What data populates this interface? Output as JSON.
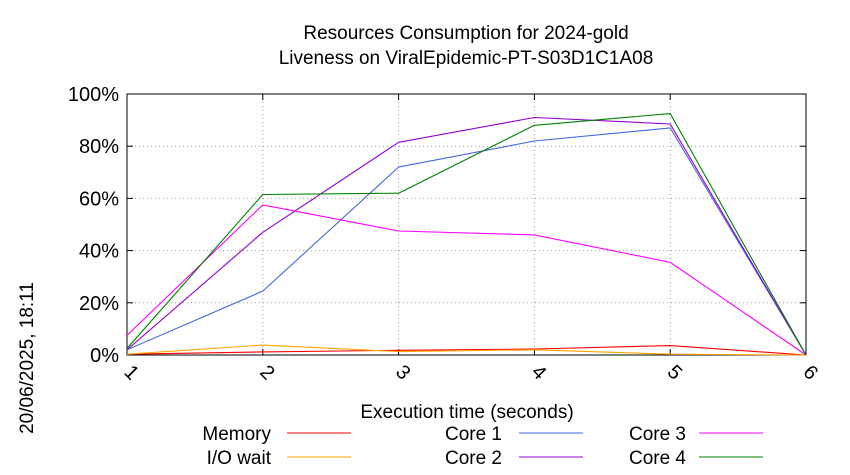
{
  "timestamp": "20/06/2025, 18:11",
  "chart_data": {
    "type": "line",
    "title": "Resources Consumption for 2024-gold",
    "subtitle": "Liveness on ViralEpidemic-PT-S03D1C1A08",
    "xlabel": "Execution time (seconds)",
    "ylabel": "",
    "xlim": [
      1,
      6
    ],
    "ylim": [
      0,
      100
    ],
    "x_ticks": [
      "1",
      "2",
      "3",
      "4",
      "5",
      "6"
    ],
    "y_ticks": [
      "0%",
      "20%",
      "40%",
      "60%",
      "80%",
      "100%"
    ],
    "grid": true,
    "legend_position": "bottom",
    "series": [
      {
        "name": "Memory",
        "color": "#ff0000",
        "x": [
          1,
          2,
          3,
          4,
          5,
          6
        ],
        "y": [
          0.3,
          1.2,
          1.8,
          2.3,
          3.6,
          0
        ]
      },
      {
        "name": "I/O wait",
        "color": "#ffa500",
        "x": [
          1,
          2,
          3,
          4,
          5,
          6
        ],
        "y": [
          0.3,
          3.8,
          1.3,
          2.0,
          0.3,
          0
        ]
      },
      {
        "name": "Core 1",
        "color": "#4169e1",
        "x": [
          1,
          2,
          3,
          4,
          5,
          6
        ],
        "y": [
          2.0,
          24.5,
          72.0,
          82.0,
          87.0,
          0
        ]
      },
      {
        "name": "Core 2",
        "color": "#9400d3",
        "x": [
          1,
          2,
          3,
          4,
          5,
          6
        ],
        "y": [
          2.0,
          47.0,
          81.5,
          91.0,
          88.5,
          0
        ]
      },
      {
        "name": "Core 3",
        "color": "#ff00ff",
        "x": [
          1,
          2,
          3,
          4,
          5,
          6
        ],
        "y": [
          7.5,
          57.5,
          47.5,
          46.0,
          35.5,
          0
        ]
      },
      {
        "name": "Core 4",
        "color": "#008000",
        "x": [
          1,
          2,
          3,
          4,
          5,
          6
        ],
        "y": [
          2.5,
          61.5,
          62.0,
          88.0,
          92.5,
          0
        ]
      }
    ]
  }
}
